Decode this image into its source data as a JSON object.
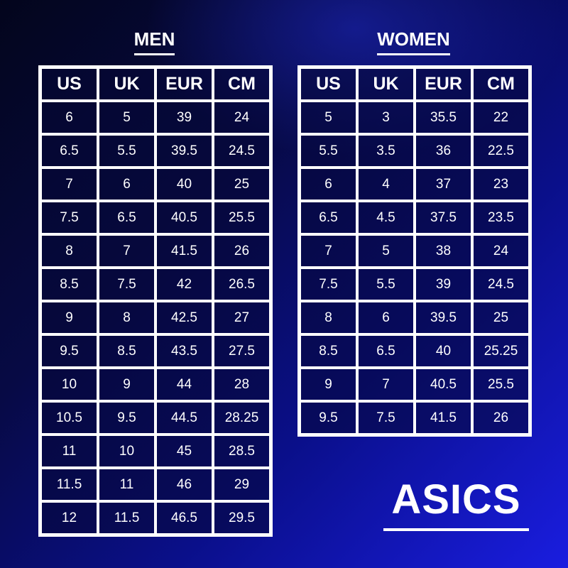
{
  "men": {
    "title": "MEN",
    "headers": [
      "US",
      "UK",
      "EUR",
      "CM"
    ],
    "rows": [
      [
        "6",
        "5",
        "39",
        "24"
      ],
      [
        "6.5",
        "5.5",
        "39.5",
        "24.5"
      ],
      [
        "7",
        "6",
        "40",
        "25"
      ],
      [
        "7.5",
        "6.5",
        "40.5",
        "25.5"
      ],
      [
        "8",
        "7",
        "41.5",
        "26"
      ],
      [
        "8.5",
        "7.5",
        "42",
        "26.5"
      ],
      [
        "9",
        "8",
        "42.5",
        "27"
      ],
      [
        "9.5",
        "8.5",
        "43.5",
        "27.5"
      ],
      [
        "10",
        "9",
        "44",
        "28"
      ],
      [
        "10.5",
        "9.5",
        "44.5",
        "28.25"
      ],
      [
        "11",
        "10",
        "45",
        "28.5"
      ],
      [
        "11.5",
        "11",
        "46",
        "29"
      ],
      [
        "12",
        "11.5",
        "46.5",
        "29.5"
      ]
    ]
  },
  "women": {
    "title": "WOMEN",
    "headers": [
      "US",
      "UK",
      "EUR",
      "CM"
    ],
    "rows": [
      [
        "5",
        "3",
        "35.5",
        "22"
      ],
      [
        "5.5",
        "3.5",
        "36",
        "22.5"
      ],
      [
        "6",
        "4",
        "37",
        "23"
      ],
      [
        "6.5",
        "4.5",
        "37.5",
        "23.5"
      ],
      [
        "7",
        "5",
        "38",
        "24"
      ],
      [
        "7.5",
        "5.5",
        "39",
        "24.5"
      ],
      [
        "8",
        "6",
        "39.5",
        "25"
      ],
      [
        "8.5",
        "6.5",
        "40",
        "25.25"
      ],
      [
        "9",
        "7",
        "40.5",
        "25.5"
      ],
      [
        "9.5",
        "7.5",
        "41.5",
        "26"
      ]
    ]
  },
  "brand": {
    "logo": "ASICS"
  },
  "colors": {
    "background_dark": "#03051c",
    "background_bright": "#1a1de0",
    "text": "#ffffff"
  }
}
